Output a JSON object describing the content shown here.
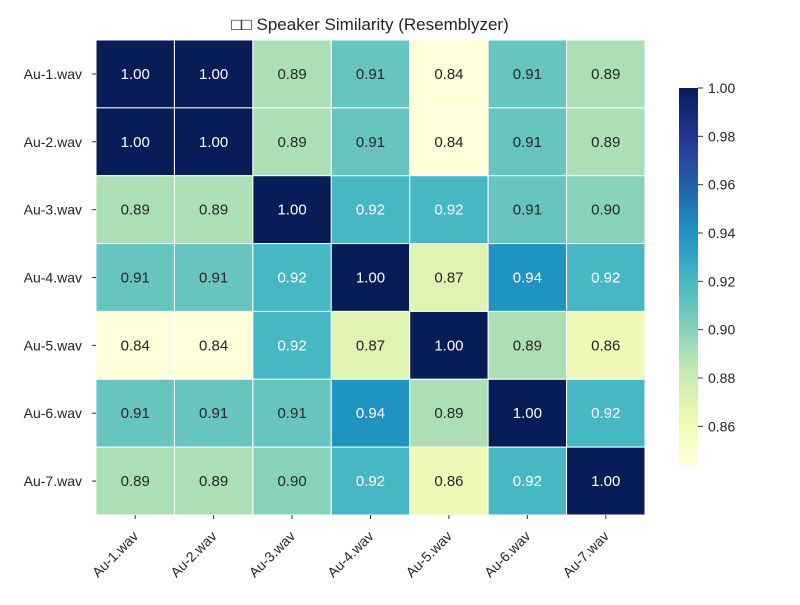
{
  "chart_data": {
    "type": "heatmap",
    "title": "□□ Speaker Similarity (Resemblyzer)",
    "row_labels": [
      "Au-1.wav",
      "Au-2.wav",
      "Au-3.wav",
      "Au-4.wav",
      "Au-5.wav",
      "Au-6.wav",
      "Au-7.wav"
    ],
    "col_labels": [
      "Au-1.wav",
      "Au-2.wav",
      "Au-3.wav",
      "Au-4.wav",
      "Au-5.wav",
      "Au-6.wav",
      "Au-7.wav"
    ],
    "values": [
      [
        1.0,
        1.0,
        0.89,
        0.91,
        0.84,
        0.91,
        0.89
      ],
      [
        1.0,
        1.0,
        0.89,
        0.91,
        0.84,
        0.91,
        0.89
      ],
      [
        0.89,
        0.89,
        1.0,
        0.92,
        0.92,
        0.91,
        0.9
      ],
      [
        0.91,
        0.91,
        0.92,
        1.0,
        0.87,
        0.94,
        0.92
      ],
      [
        0.84,
        0.84,
        0.92,
        0.87,
        1.0,
        0.89,
        0.86
      ],
      [
        0.91,
        0.91,
        0.91,
        0.94,
        0.89,
        1.0,
        0.92
      ],
      [
        0.89,
        0.89,
        0.9,
        0.92,
        0.86,
        0.92,
        1.0
      ]
    ],
    "annotation_format": "0.00",
    "colormap": "YlGnBu",
    "colormap_stops": [
      "#ffffd9",
      "#edf8b1",
      "#c7e9b4",
      "#7fcdbb",
      "#41b6c4",
      "#1d91c0",
      "#225ea8",
      "#253494",
      "#081d58"
    ],
    "colorbar": {
      "range": [
        0.844,
        1.0
      ],
      "ticks": [
        "0.86",
        "0.88",
        "0.90",
        "0.92",
        "0.94",
        "0.96",
        "0.98",
        "1.00"
      ],
      "placement": "right"
    },
    "cell_border_color": "#ffffff"
  }
}
